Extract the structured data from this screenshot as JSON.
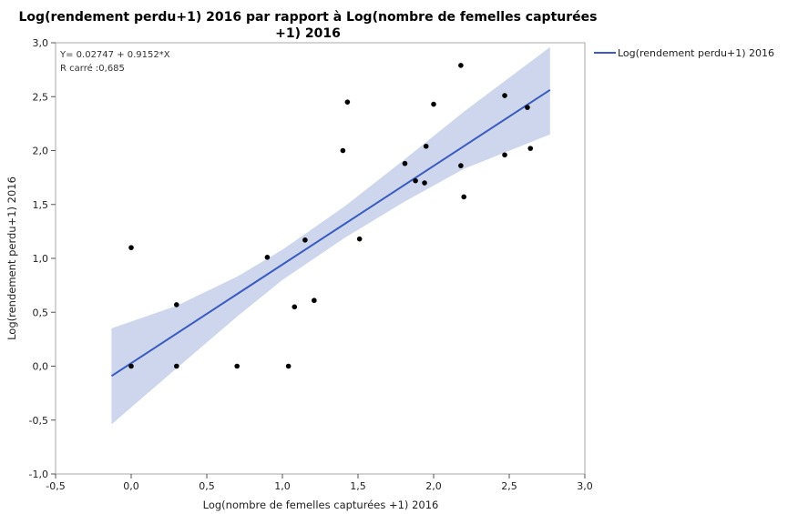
{
  "chart_data": {
    "type": "scatter",
    "title_lines": [
      "Log(rendement perdu+1) 2016 par rapport à Log(nombre de femelles capturées",
      "+1) 2016"
    ],
    "xlabel": "Log(nombre de femelles capturées +1) 2016",
    "ylabel": "Log(rendement perdu+1) 2016",
    "xlim": [
      -0.5,
      3.0
    ],
    "ylim": [
      -1.0,
      3.0
    ],
    "x_ticks": [
      -0.5,
      0.0,
      0.5,
      1.0,
      1.5,
      2.0,
      2.5,
      3.0
    ],
    "x_tick_labels": [
      "-0,5",
      "0,0",
      "0,5",
      "1,0",
      "1,5",
      "2,0",
      "2,5",
      "3,0"
    ],
    "y_ticks": [
      -1.0,
      -0.5,
      0.0,
      0.5,
      1.0,
      1.5,
      2.0,
      2.5,
      3.0
    ],
    "y_tick_labels": [
      "-1,0",
      "-0,5",
      "0,0",
      "0,5",
      "1,0",
      "1,5",
      "2,0",
      "2,5",
      "3,0"
    ],
    "grid": false,
    "legend_position": "top-right",
    "annotations": [
      "Y= 0.02747 + 0.9152*X",
      "R carré :0,685"
    ],
    "series": [
      {
        "name": "Log(rendement perdu+1) 2016",
        "kind": "regression_line",
        "color": "#3a5bbf",
        "intercept": 0.02747,
        "slope": 0.9152,
        "x_range": [
          -0.13,
          2.77
        ]
      }
    ],
    "confidence_band": {
      "color": "#c8d2ea",
      "points": [
        {
          "x": -0.13,
          "lower": -0.54,
          "upper": 0.35
        },
        {
          "x": 0.3,
          "lower": -0.02,
          "upper": 0.56
        },
        {
          "x": 0.7,
          "lower": 0.46,
          "upper": 0.83
        },
        {
          "x": 1.0,
          "lower": 0.8,
          "upper": 1.08
        },
        {
          "x": 1.4,
          "lower": 1.18,
          "upper": 1.47
        },
        {
          "x": 1.8,
          "lower": 1.52,
          "upper": 1.91
        },
        {
          "x": 2.2,
          "lower": 1.83,
          "upper": 2.36
        },
        {
          "x": 2.77,
          "lower": 2.15,
          "upper": 2.96
        }
      ]
    },
    "points": [
      {
        "x": 0.0,
        "y": 1.1
      },
      {
        "x": 0.0,
        "y": 0.0
      },
      {
        "x": 0.3,
        "y": 0.57
      },
      {
        "x": 0.3,
        "y": 0.0
      },
      {
        "x": 0.7,
        "y": 0.0
      },
      {
        "x": 0.9,
        "y": 1.01
      },
      {
        "x": 1.04,
        "y": 0.0
      },
      {
        "x": 1.08,
        "y": 0.55
      },
      {
        "x": 1.15,
        "y": 1.17
      },
      {
        "x": 1.21,
        "y": 0.61
      },
      {
        "x": 1.4,
        "y": 2.0
      },
      {
        "x": 1.43,
        "y": 2.45
      },
      {
        "x": 1.51,
        "y": 1.18
      },
      {
        "x": 1.81,
        "y": 1.88
      },
      {
        "x": 1.88,
        "y": 1.72
      },
      {
        "x": 1.94,
        "y": 1.7
      },
      {
        "x": 1.95,
        "y": 2.04
      },
      {
        "x": 2.0,
        "y": 2.43
      },
      {
        "x": 2.18,
        "y": 2.79
      },
      {
        "x": 2.18,
        "y": 1.86
      },
      {
        "x": 2.2,
        "y": 1.57
      },
      {
        "x": 2.47,
        "y": 2.51
      },
      {
        "x": 2.47,
        "y": 1.96
      },
      {
        "x": 2.62,
        "y": 2.4
      },
      {
        "x": 2.64,
        "y": 2.02
      }
    ],
    "point_color": "#000000"
  }
}
